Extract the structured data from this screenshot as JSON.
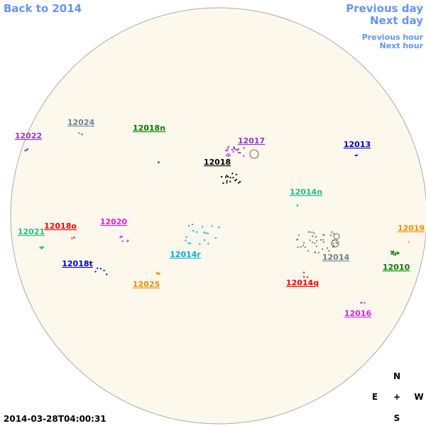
{
  "nav": {
    "back": "Back to 2014",
    "previous_day": "Previous day",
    "next_day": "Next day",
    "previous_hour": "Previous hour",
    "next_hour": "Next hour"
  },
  "regions": [
    "12024",
    "12022",
    "12018n",
    "12017",
    "12013",
    "12018",
    "12014n",
    "12018o",
    "12020",
    "12021",
    "12019",
    "12014r",
    "12014",
    "12018t",
    "12010",
    "12025",
    "12014q",
    "12016"
  ],
  "timestamp": "2014-03-28T04:00:31",
  "compass": {
    "north": "N",
    "east": "E",
    "center": "+",
    "west": "W",
    "south": "S"
  }
}
